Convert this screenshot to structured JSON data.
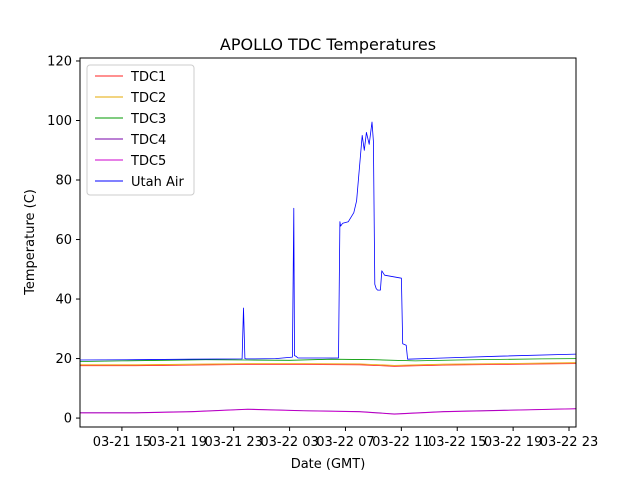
{
  "chart_data": {
    "type": "line",
    "title": "APOLLO TDC Temperatures",
    "xlabel": "Date (GMT)",
    "ylabel": "Temperature (C)",
    "x_unit": "hours since 03-21 12:00 GMT",
    "xlim": [
      0,
      35.5
    ],
    "ylim": [
      -3,
      121
    ],
    "x_ticks": [
      {
        "x": 3,
        "label": "03-21 15"
      },
      {
        "x": 7,
        "label": "03-21 19"
      },
      {
        "x": 11,
        "label": "03-21 23"
      },
      {
        "x": 15,
        "label": "03-22 03"
      },
      {
        "x": 19,
        "label": "03-22 07"
      },
      {
        "x": 23,
        "label": "03-22 11"
      },
      {
        "x": 27,
        "label": "03-22 15"
      },
      {
        "x": 31,
        "label": "03-22 19"
      },
      {
        "x": 35,
        "label": "03-22 23"
      }
    ],
    "y_ticks": [
      {
        "y": 0,
        "label": "0"
      },
      {
        "y": 20,
        "label": "20"
      },
      {
        "y": 40,
        "label": "40"
      },
      {
        "y": 60,
        "label": "60"
      },
      {
        "y": 80,
        "label": "80"
      },
      {
        "y": 100,
        "label": "100"
      },
      {
        "y": 120,
        "label": "120"
      }
    ],
    "legend_position": "top-left",
    "series": [
      {
        "name": "TDC1",
        "color": "#ff2222",
        "x": [
          0,
          4,
          8,
          12,
          16,
          20,
          22.5,
          26,
          30,
          35.5
        ],
        "y": [
          17.6,
          17.6,
          17.8,
          18.0,
          18.0,
          17.9,
          17.4,
          17.8,
          18.0,
          18.3
        ]
      },
      {
        "name": "TDC2",
        "color": "#e6a800",
        "x": [
          0,
          4,
          8,
          12,
          16,
          20,
          22.5,
          26,
          30,
          35.5
        ],
        "y": [
          17.9,
          17.9,
          18.1,
          18.3,
          18.3,
          18.2,
          17.7,
          18.1,
          18.3,
          18.6
        ]
      },
      {
        "name": "TDC3",
        "color": "#009900",
        "x": [
          0,
          3,
          6,
          9,
          12,
          15,
          18,
          21,
          24,
          27,
          30,
          33,
          35.5
        ],
        "y": [
          19.0,
          19.2,
          19.4,
          19.6,
          19.5,
          19.4,
          19.8,
          19.6,
          19.2,
          19.5,
          19.7,
          19.9,
          20.0
        ]
      },
      {
        "name": "TDC4",
        "color": "#7700aa",
        "x": [
          0,
          4,
          8,
          12,
          16,
          20,
          22.5,
          26,
          30,
          35.5
        ],
        "y": [
          1.8,
          1.8,
          2.2,
          3.0,
          2.5,
          2.2,
          1.4,
          2.2,
          2.6,
          3.2
        ]
      },
      {
        "name": "TDC5",
        "color": "#cc00cc",
        "x": [
          0,
          4,
          8,
          12,
          16,
          20,
          22.5,
          26,
          30,
          35.5
        ],
        "y": [
          1.7,
          1.7,
          2.1,
          2.9,
          2.4,
          2.1,
          1.3,
          2.1,
          2.5,
          3.1
        ]
      },
      {
        "name": "Utah Air",
        "color": "#0000ff",
        "x": [
          0,
          4,
          8,
          11.6,
          11.7,
          11.8,
          11.9,
          12.5,
          14,
          15.2,
          15.3,
          15.35,
          15.45,
          15.6,
          18.5,
          18.6,
          18.65,
          18.8,
          19.2,
          19.6,
          19.8,
          20.2,
          20.35,
          20.5,
          20.7,
          20.9,
          21.0,
          21.1,
          21.2,
          21.3,
          21.5,
          21.6,
          21.8,
          23.0,
          23.1,
          23.35,
          23.45,
          26,
          30,
          35.5
        ],
        "y": [
          19.5,
          19.6,
          19.8,
          19.9,
          37.0,
          20.0,
          19.9,
          19.9,
          20.0,
          20.5,
          70.5,
          21.0,
          20.8,
          20.2,
          20.2,
          66.0,
          64.5,
          65.5,
          66.0,
          69.0,
          73.0,
          95.0,
          90.0,
          96.0,
          92.0,
          99.5,
          93.0,
          45.0,
          43.5,
          43.0,
          43.0,
          49.5,
          48.0,
          47.0,
          25.0,
          24.5,
          19.8,
          20.2,
          20.8,
          21.5
        ]
      }
    ]
  }
}
